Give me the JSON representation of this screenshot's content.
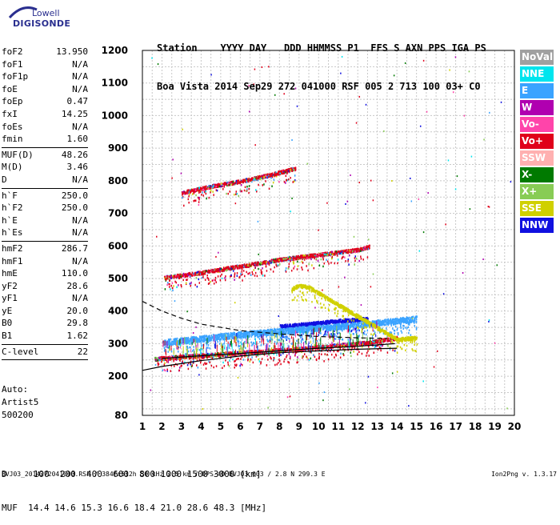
{
  "logo": {
    "top_text": "Lowell",
    "bottom_text": "DIGISONDE"
  },
  "header": {
    "labels": "Station    YYYY DAY   DDD HHMMSS P1  FFS S AXN PPS IGA PS",
    "values": "Boa Vista 2014 Sep29 272 041000 RSF 005 2 713 100 03+ C0"
  },
  "params_group1": [
    {
      "name": "foF2",
      "value": "13.950"
    },
    {
      "name": "foF1",
      "value": "N/A"
    },
    {
      "name": "foF1p",
      "value": "N/A"
    },
    {
      "name": "foE",
      "value": "N/A"
    },
    {
      "name": "foEp",
      "value": "0.47"
    },
    {
      "name": "fxI",
      "value": "14.25"
    },
    {
      "name": "foEs",
      "value": "N/A"
    },
    {
      "name": "fmin",
      "value": "1.60"
    }
  ],
  "params_group2": [
    {
      "name": "MUF(D)",
      "value": "48.26"
    },
    {
      "name": "M(D)",
      "value": "3.46"
    },
    {
      "name": "D",
      "value": "N/A"
    }
  ],
  "params_group3": [
    {
      "name": "h`F",
      "value": "250.0"
    },
    {
      "name": "h`F2",
      "value": "250.0"
    },
    {
      "name": "h`E",
      "value": "N/A"
    },
    {
      "name": "h`Es",
      "value": "N/A"
    }
  ],
  "params_group4": [
    {
      "name": "hmF2",
      "value": "286.7"
    },
    {
      "name": "hmF1",
      "value": "N/A"
    },
    {
      "name": "hmE",
      "value": "110.0"
    },
    {
      "name": "yF2",
      "value": "28.6"
    },
    {
      "name": "yF1",
      "value": "N/A"
    },
    {
      "name": "yE",
      "value": "20.0"
    },
    {
      "name": "B0",
      "value": "29.8"
    },
    {
      "name": "B1",
      "value": "1.62"
    }
  ],
  "params_group5": [
    {
      "name": "C-level",
      "value": "22"
    }
  ],
  "auto": {
    "line1": "Auto:",
    "line2": "Artist5",
    "line3": "500200"
  },
  "bottom_table": {
    "d_row": "D     100  200  400  600  800 1000 1500 3000 [km]",
    "muf_row": "MUF  14.4 14.6 15.3 16.6 18.4 21.0 28.6 48.3 [MHz]"
  },
  "footer": {
    "left": "BVJ03_2014272041000.RSF / 384fx512h 50 kHz 2.5 km / DPS-4D BVJ03 003 / 2.8 N 299.3 E",
    "right": "Ion2Png v. 1.3.17"
  },
  "legend": [
    {
      "label": "NoVal",
      "color": "#a0a0a0"
    },
    {
      "label": "NNE",
      "color": "#00e5ee"
    },
    {
      "label": "E",
      "color": "#3aa3ff"
    },
    {
      "label": "W",
      "color": "#b000b0"
    },
    {
      "label": "Vo-",
      "color": "#ff44aa"
    },
    {
      "label": "Vo+",
      "color": "#e0001a"
    },
    {
      "label": "SSW",
      "color": "#ffb0b0"
    },
    {
      "label": "X-",
      "color": "#007a00"
    },
    {
      "label": "X+",
      "color": "#88cc55"
    },
    {
      "label": "SSE",
      "color": "#d0d000"
    },
    {
      "label": "NNW",
      "color": "#1010e0"
    }
  ],
  "chart_data": {
    "type": "scatter",
    "xlim": [
      1,
      20
    ],
    "ylim": [
      80,
      1200
    ],
    "x_ticks": [
      "1",
      "2",
      "3",
      "4",
      "5",
      "6",
      "7",
      "8",
      "9",
      "10",
      "11",
      "12",
      "13",
      "14",
      "15",
      "16",
      "17",
      "18",
      "19",
      "20"
    ],
    "y_ticks": [
      "80",
      "200",
      "300",
      "400",
      "500",
      "600",
      "700",
      "800",
      "900",
      "1000",
      "1100",
      "1200"
    ],
    "y_tick_values": [
      80,
      200,
      300,
      400,
      500,
      600,
      700,
      800,
      900,
      1000,
      1100,
      1200
    ],
    "grid": true,
    "series": [
      {
        "name": "Vo+",
        "points": [
          [
            1.6,
            255
          ],
          [
            3,
            262
          ],
          [
            5,
            270
          ],
          [
            7,
            278
          ],
          [
            9,
            286
          ],
          [
            11,
            297
          ],
          [
            12.5,
            305
          ],
          [
            14,
            320
          ]
        ]
      },
      {
        "name": "NNW",
        "points": [
          [
            8,
            355
          ],
          [
            9,
            360
          ],
          [
            10,
            366
          ],
          [
            11,
            372
          ],
          [
            12,
            376
          ],
          [
            12.5,
            378
          ]
        ]
      },
      {
        "name": "E",
        "points": [
          [
            2,
            305
          ],
          [
            4,
            318
          ],
          [
            6,
            330
          ],
          [
            8,
            340
          ],
          [
            10,
            350
          ],
          [
            12,
            360
          ],
          [
            14,
            372
          ],
          [
            15,
            378
          ]
        ]
      },
      {
        "name": "Vo+",
        "points": [
          [
            2.1,
            505
          ],
          [
            4,
            520
          ],
          [
            6,
            540
          ],
          [
            8,
            560
          ],
          [
            10,
            575
          ],
          [
            12,
            590
          ],
          [
            12.6,
            600
          ]
        ]
      },
      {
        "name": "Vo+",
        "points": [
          [
            3,
            765
          ],
          [
            4.5,
            785
          ],
          [
            6,
            800
          ],
          [
            7.5,
            820
          ],
          [
            8.8,
            840
          ]
        ]
      },
      {
        "name": "SSE",
        "points": [
          [
            8.6,
            470
          ],
          [
            9,
            480
          ],
          [
            9.5,
            475
          ],
          [
            14,
            315
          ],
          [
            15,
            320
          ]
        ]
      }
    ],
    "model_curves": {
      "lower_solid": [
        [
          1,
          218
        ],
        [
          2,
          230
        ],
        [
          4,
          248
        ],
        [
          6,
          262
        ],
        [
          8,
          272
        ],
        [
          10,
          278
        ],
        [
          12,
          283
        ],
        [
          14,
          286
        ]
      ],
      "dashed": [
        [
          1,
          430
        ],
        [
          2,
          400
        ],
        [
          3,
          378
        ],
        [
          4,
          360
        ],
        [
          6,
          340
        ],
        [
          8,
          330
        ],
        [
          10,
          322
        ],
        [
          12,
          318
        ],
        [
          13.5,
          316
        ]
      ],
      "upper_solid": [
        [
          2,
          255
        ],
        [
          4,
          263
        ],
        [
          6,
          270
        ],
        [
          8,
          278
        ],
        [
          10,
          286
        ],
        [
          12,
          292
        ],
        [
          13.9,
          300
        ]
      ]
    }
  }
}
